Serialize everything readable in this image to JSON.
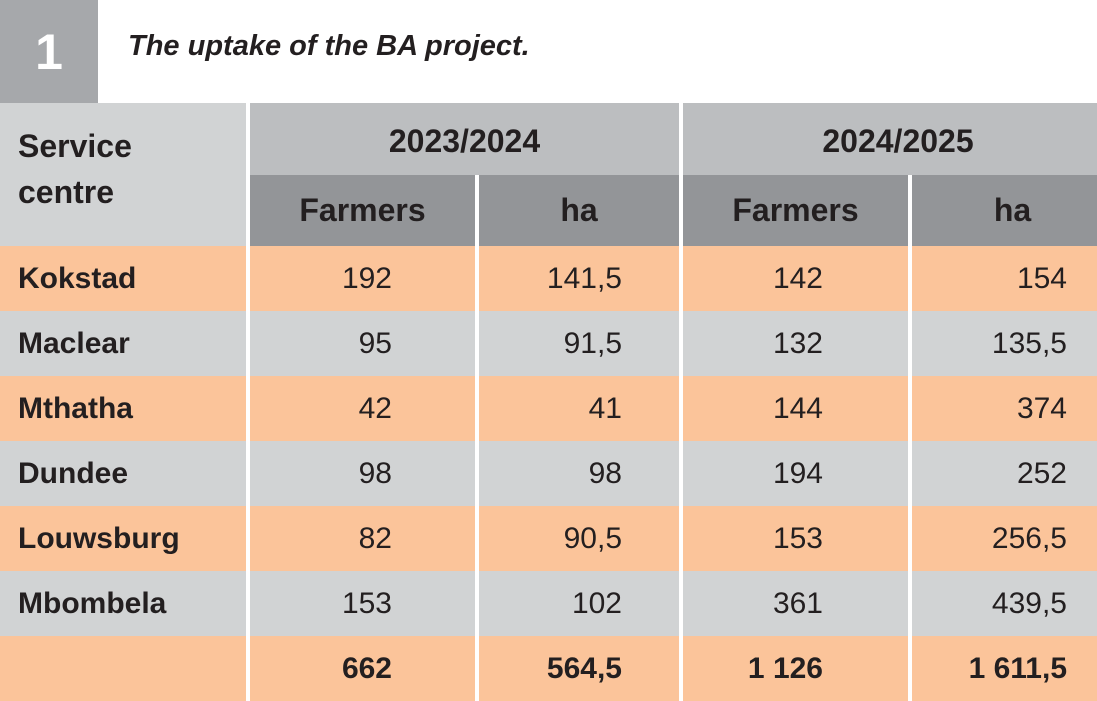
{
  "table_number": "1",
  "caption": "The uptake of the BA project.",
  "header": {
    "service_centre_line1": "Service",
    "service_centre_line2": "centre",
    "year1": "2023/2024",
    "year2": "2024/2025",
    "farmers": "Farmers",
    "ha": "ha"
  },
  "rows": [
    {
      "centre": "Kokstad",
      "farmers_2023": "192",
      "ha_2023": "141,5",
      "farmers_2024": "142",
      "ha_2024": "154"
    },
    {
      "centre": "Maclear",
      "farmers_2023": "95",
      "ha_2023": "91,5",
      "farmers_2024": "132",
      "ha_2024": "135,5"
    },
    {
      "centre": "Mthatha",
      "farmers_2023": "42",
      "ha_2023": "41",
      "farmers_2024": "144",
      "ha_2024": "374"
    },
    {
      "centre": "Dundee",
      "farmers_2023": "98",
      "ha_2023": "98",
      "farmers_2024": "194",
      "ha_2024": "252"
    },
    {
      "centre": "Louwsburg",
      "farmers_2023": "82",
      "ha_2023": "90,5",
      "farmers_2024": "153",
      "ha_2024": "256,5"
    },
    {
      "centre": "Mbombela",
      "farmers_2023": "153",
      "ha_2023": "102",
      "farmers_2024": "361",
      "ha_2024": "439,5"
    }
  ],
  "total": {
    "centre": "",
    "farmers_2023": "662",
    "ha_2023": "564,5",
    "farmers_2024": "1 126",
    "ha_2024": "1 611,5"
  },
  "colors": {
    "orange_row": "#fbc49a",
    "grey_row": "#d1d3d4",
    "header_year": "#bcbec0",
    "header_sub": "#939598",
    "number_box": "#a6a8ab"
  }
}
